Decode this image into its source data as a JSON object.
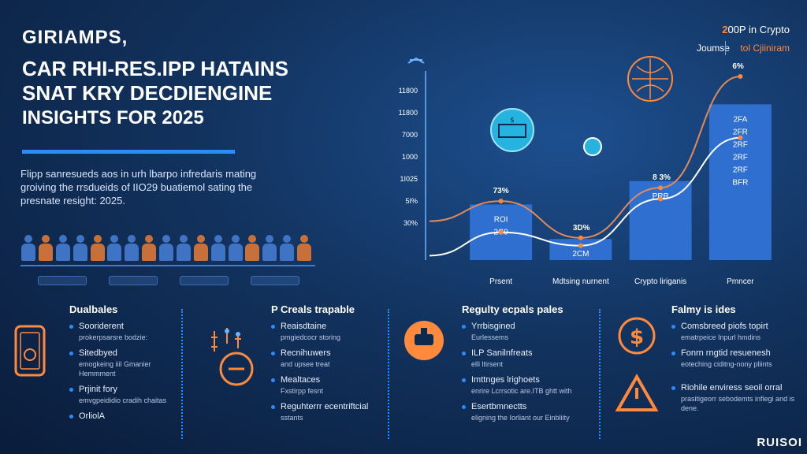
{
  "header": {
    "brand": "GIRIAMPS,",
    "headline": [
      "CAR RHI-RES.IPP HATAINS",
      "SNAT KRY DECDIENGINE",
      "INSIGHTS FOR 2025"
    ],
    "intro": "Flipp sanresueds aos in urh lbarpo infredaris mating groiving the rrsdueids of IIO29 buatiemol sating the presnate resight: 2025.",
    "top_right_accent": "2",
    "top_right_title": "00P in Crypto",
    "top_right_left": "Joumse",
    "top_right_right": "tol Cjiiniram"
  },
  "colors": {
    "accent_blue": "#2a8cff",
    "accent_orange": "#ff8a3d",
    "bar_blue": "#2f6fd0",
    "background": "#12335f"
  },
  "crowd": {
    "count": 17
  },
  "chart_data": {
    "type": "bar",
    "categories": [
      "Prsent",
      "Mdtsing nurnent",
      "Crypto liriganis",
      "Pmncer"
    ],
    "values": [
      70,
      39,
      91,
      160
    ],
    "ylim": [
      20,
      190
    ],
    "ytick_labels": [
      "11800",
      "11800",
      "7000",
      "1000",
      "1I025",
      "5I%",
      "30%"
    ],
    "bar_labels": [
      "ROI\n2C9",
      "2CM",
      "PRR",
      "2FA\n2FR\n2RF\n2RF\n2RF\nBFR"
    ],
    "annotations": [
      "73%",
      "3D%",
      "8 3%",
      "6%"
    ],
    "series": [
      {
        "values": [
          73,
          40,
          85,
          185
        ]
      },
      {
        "values": [
          45,
          33,
          75,
          130
        ]
      }
    ]
  },
  "panels": [
    {
      "title": "Dualbales",
      "icon": "phone-security-icon",
      "items": [
        {
          "main": "Sooriderent",
          "sub": "prokerpsarsre bodzie:"
        },
        {
          "main": "Sitedbyed",
          "sub": "emogkeing iiil Gmanier Hemmment"
        },
        {
          "main": "Prjinit fory",
          "sub": "emvgpeididio cradih chaitas"
        },
        {
          "main": "OrliolA",
          "sub": ""
        }
      ]
    },
    {
      "title": "P Creals trapable",
      "icon": "stopwatch-icon",
      "items": [
        {
          "main": "Reaisdtaine",
          "sub": "pmgiedcocr storing"
        },
        {
          "main": "Recnihuwers",
          "sub": "and upsee treat"
        },
        {
          "main": "Mealtaces",
          "sub": "Fxstirpp fesnt"
        },
        {
          "main": "Reguhterrr ecentriftcial",
          "sub": "sstants"
        }
      ]
    },
    {
      "title": "Regulty ecpals pales",
      "icon": "gavel-icon",
      "items": [
        {
          "main": "Yrrbisgined",
          "sub": "Eurlessems"
        },
        {
          "main": "ILP Sanilnfreats",
          "sub": "elli ltirsent"
        },
        {
          "main": "Imttnges lrighoets",
          "sub": "enrire Lcrrsotic are.ITB ghtt with"
        },
        {
          "main": "Esertbmnectts",
          "sub": "eligning the Iorliant our Einbliity"
        }
      ]
    },
    {
      "title": "Falmy is ides",
      "icon": "dollar-shield-icon",
      "items": [
        {
          "main": "Comsbreed piofs topirt",
          "sub": "ematrpeice Inpurl hmdins"
        },
        {
          "main": "Fonrn rngtid resuenesh",
          "sub": "eoteching ciditng-nony pliints"
        },
        {
          "main": "Riohile enviress seoil orral",
          "sub": "prasitigeorr sebodemts infiegi and is dene."
        }
      ]
    }
  ],
  "footer": {
    "mark": "RUISOI"
  }
}
